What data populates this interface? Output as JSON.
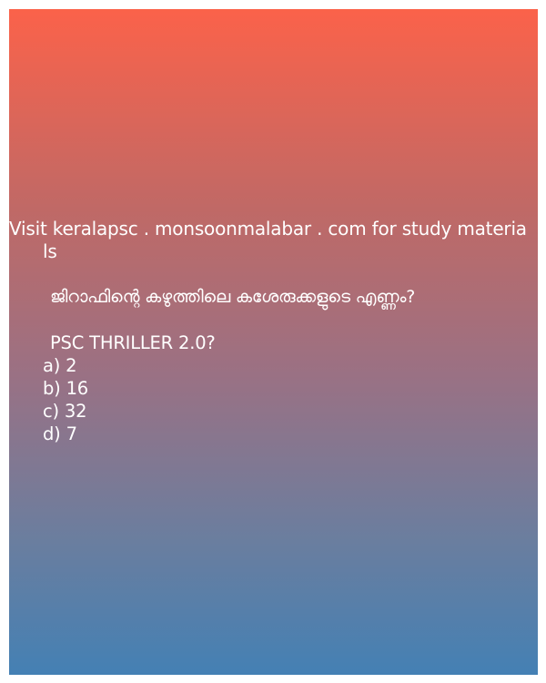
{
  "promo": {
    "line1": "Visit keralapsc . monsoonmalabar . com for study materia",
    "line2": "ls"
  },
  "question": {
    "text": "ജിറാഫിന്റെ കഴുത്തിലെ കശേരുക്കളുടെ എണ്ണം?",
    "tag": "PSC THRILLER 2.0?"
  },
  "options": [
    {
      "label": "a) 2"
    },
    {
      "label": "b) 16"
    },
    {
      "label": "c) 32"
    },
    {
      "label": "d) 7"
    }
  ],
  "colors": {
    "gradient_top": "#fb624a",
    "gradient_bottom": "#4480b4",
    "text": "#ffffff"
  }
}
